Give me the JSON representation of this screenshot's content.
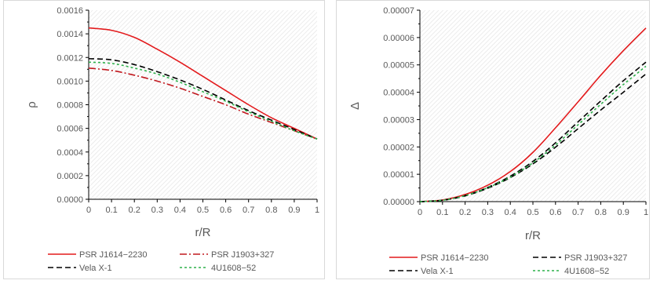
{
  "chart_data": [
    {
      "type": "line",
      "xlabel": "r/R",
      "ylabel": "ρ",
      "xlim": [
        0,
        1
      ],
      "ylim": [
        0,
        0.0016
      ],
      "xticks": [
        "0",
        "0.1",
        "0.2",
        "0.3",
        "0.4",
        "0.5",
        "0.6",
        "0.7",
        "0.8",
        "0.9",
        "1"
      ],
      "yticks": [
        "0.0000",
        "0.0002",
        "0.0004",
        "0.0006",
        "0.0008",
        "0.0010",
        "0.0012",
        "0.0014",
        "0.0016"
      ],
      "grid": "hatched",
      "legend_position": "bottom",
      "x": [
        0,
        0.1,
        0.2,
        0.3,
        0.4,
        0.5,
        0.6,
        0.7,
        0.8,
        0.9,
        1
      ],
      "series": [
        {
          "name": "PSR J1614−2230",
          "color": "#e31a1c",
          "dash": "solid",
          "values": [
            0.00145,
            0.00143,
            0.00137,
            0.00127,
            0.00116,
            0.00104,
            0.00092,
            0.0008,
            0.00069,
            0.0006,
            0.00051
          ]
        },
        {
          "name": "PSR J1903+327",
          "color": "#c0181e",
          "dash": "dashdot",
          "values": [
            0.00111,
            0.00109,
            0.00105,
            0.001,
            0.00094,
            0.00087,
            0.0008,
            0.00072,
            0.00065,
            0.00058,
            0.00051
          ]
        },
        {
          "name": "Vela X-1",
          "color": "#000000",
          "dash": "dash",
          "values": [
            0.00119,
            0.00118,
            0.00114,
            0.00108,
            0.00101,
            0.00093,
            0.00084,
            0.00075,
            0.00067,
            0.00059,
            0.00051
          ]
        },
        {
          "name": "4U1608−52",
          "color": "#2db04a",
          "dash": "dot",
          "values": [
            0.00116,
            0.00115,
            0.00111,
            0.00106,
            0.00099,
            0.00091,
            0.00083,
            0.00074,
            0.00066,
            0.00058,
            0.00051
          ]
        }
      ]
    },
    {
      "type": "line",
      "xlabel": "r/R",
      "ylabel": "Δ",
      "xlim": [
        0,
        1
      ],
      "ylim": [
        0,
        7e-05
      ],
      "xticks": [
        "0",
        "0.1",
        "0.2",
        "0.3",
        "0.4",
        "0.5",
        "0.6",
        "0.7",
        "0.8",
        "0.9",
        "1"
      ],
      "yticks": [
        "0.00000",
        "0.00001",
        "0.00002",
        "0.00003",
        "0.00004",
        "0.00005",
        "0.00006",
        "0.00007"
      ],
      "grid": "hatched",
      "legend_position": "bottom",
      "x": [
        0,
        0.1,
        0.2,
        0.3,
        0.4,
        0.5,
        0.6,
        0.7,
        0.8,
        0.9,
        1
      ],
      "series": [
        {
          "name": "PSR J1614−2230",
          "color": "#e31a1c",
          "dash": "solid",
          "values": [
            0,
            6e-07,
            2.6e-06,
            6e-06,
            1.1e-05,
            1.8e-05,
            2.7e-05,
            3.65e-05,
            4.62e-05,
            5.52e-05,
            6.35e-05
          ]
        },
        {
          "name": "PSR J1903+327",
          "color": "#000000",
          "dash": "dash",
          "values": [
            0,
            5e-07,
            2.2e-06,
            5.2e-06,
            9.3e-06,
            1.47e-05,
            2.15e-05,
            2.92e-05,
            3.68e-05,
            4.42e-05,
            5.1e-05
          ]
        },
        {
          "name": "Vela X-1",
          "color": "#000000",
          "dash": "dash",
          "values": [
            0,
            5e-07,
            2.1e-06,
            4.9e-06,
            8.8e-06,
            1.38e-05,
            1.99e-05,
            2.67e-05,
            3.35e-05,
            4e-05,
            4.67e-05
          ]
        },
        {
          "name": "4U1608−52",
          "color": "#2db04a",
          "dash": "dot",
          "values": [
            0,
            5e-07,
            2.2e-06,
            5.1e-06,
            9e-06,
            1.42e-05,
            2.07e-05,
            2.81e-05,
            3.56e-05,
            4.28e-05,
            4.95e-05
          ]
        }
      ]
    }
  ]
}
